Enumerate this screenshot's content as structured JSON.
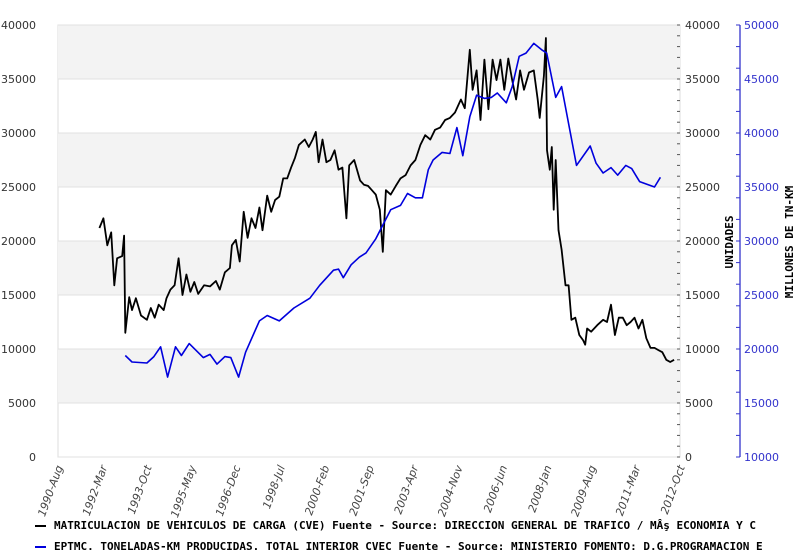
{
  "chart_data": {
    "type": "line",
    "title": "",
    "xlabel": "",
    "x_tick_labels": [
      "1990-Aug",
      "1992-Mar",
      "1993-Oct",
      "1995-May",
      "1996-Dec",
      "1998-Jul",
      "2000-Feb",
      "2001-Sep",
      "2003-Apr",
      "2004-Nov",
      "2006-Jun",
      "2008-Jan",
      "2009-Aug",
      "2011-Mar",
      "2012-Oct"
    ],
    "x_tick_values": [
      1990.583,
      1992.167,
      1993.75,
      1995.333,
      1996.917,
      1998.5,
      2000.083,
      2001.667,
      2003.25,
      2004.833,
      2006.417,
      2008.0,
      2009.583,
      2011.167,
      2012.75
    ],
    "xlim": [
      1990.583,
      2012.75
    ],
    "y_left": {
      "label": "UNIDADES",
      "ylim": [
        0,
        40000
      ],
      "ticks": [
        "0",
        "5000",
        "10000",
        "15000",
        "20000",
        "25000",
        "30000",
        "35000",
        "40000"
      ]
    },
    "y_right": {
      "label": "MILLONES DE TN-KM",
      "ylim": [
        10000,
        50000
      ],
      "ticks": [
        "10000",
        "15000",
        "20000",
        "25000",
        "30000",
        "35000",
        "40000",
        "45000",
        "50000"
      ],
      "color": "#3333cc"
    },
    "grid": true,
    "legend_placement": "bottom",
    "series": [
      {
        "name": "MATRICULACION DE VEHICULOS DE CARGA (CVE)  Fuente - Source: DIRECCION GENERAL DE TRAFICO / MÂş ECONOMIA Y C",
        "color": "#000000",
        "axis": "left",
        "x": [
          1992.06,
          1992.2,
          1992.34,
          1992.48,
          1992.59,
          1992.69,
          1992.87,
          1992.94,
          1992.98,
          1993.12,
          1993.22,
          1993.36,
          1993.54,
          1993.75,
          1993.89,
          1994.03,
          1994.17,
          1994.35,
          1994.45,
          1994.59,
          1994.74,
          1994.88,
          1995.02,
          1995.16,
          1995.3,
          1995.44,
          1995.58,
          1995.79,
          1996.0,
          1996.21,
          1996.35,
          1996.53,
          1996.71,
          1996.78,
          1996.92,
          1997.06,
          1997.2,
          1997.34,
          1997.48,
          1997.62,
          1997.76,
          1997.87,
          1998.04,
          1998.18,
          1998.32,
          1998.47,
          1998.61,
          1998.75,
          1998.89,
          1999.03,
          1999.17,
          1999.38,
          1999.52,
          1999.66,
          1999.77,
          1999.87,
          2000.01,
          2000.15,
          2000.29,
          2000.44,
          2000.58,
          2000.72,
          2000.86,
          2000.96,
          2001.14,
          2001.35,
          2001.49,
          2001.63,
          2001.77,
          2001.91,
          2002.05,
          2002.16,
          2002.27,
          2002.44,
          2002.62,
          2002.79,
          2002.97,
          2003.15,
          2003.32,
          2003.5,
          2003.67,
          2003.85,
          2004.02,
          2004.2,
          2004.38,
          2004.55,
          2004.73,
          2004.94,
          2005.08,
          2005.26,
          2005.36,
          2005.5,
          2005.64,
          2005.78,
          2005.92,
          2006.07,
          2006.21,
          2006.35,
          2006.49,
          2006.63,
          2006.77,
          2006.91,
          2007.05,
          2007.19,
          2007.37,
          2007.54,
          2007.68,
          2007.75,
          2007.9,
          2007.97,
          2008.01,
          2008.11,
          2008.18,
          2008.25,
          2008.32,
          2008.42,
          2008.53,
          2008.67,
          2008.78,
          2008.88,
          2009.02,
          2009.16,
          2009.3,
          2009.37,
          2009.44,
          2009.58,
          2009.8,
          2010.01,
          2010.15,
          2010.29,
          2010.43,
          2010.57,
          2010.71,
          2010.85,
          2010.99,
          2011.13,
          2011.27,
          2011.41,
          2011.55,
          2011.7,
          2011.84,
          2011.98,
          2012.12,
          2012.26,
          2012.4,
          2012.54
        ],
        "values": [
          21200,
          22100,
          19600,
          20800,
          15900,
          18400,
          18600,
          20500,
          11500,
          14800,
          13600,
          14700,
          13100,
          12700,
          13800,
          12900,
          14100,
          13600,
          14700,
          15500,
          15900,
          18400,
          15000,
          16900,
          15300,
          16200,
          15100,
          15900,
          15800,
          16300,
          15500,
          17100,
          17500,
          19600,
          20100,
          18100,
          22700,
          20300,
          22100,
          21200,
          23100,
          21000,
          24200,
          22700,
          23800,
          24100,
          25800,
          25800,
          26800,
          27700,
          28900,
          29400,
          28700,
          29400,
          30100,
          27300,
          29400,
          27300,
          27500,
          28400,
          26600,
          26800,
          22100,
          27000,
          27500,
          25600,
          25200,
          25100,
          24700,
          24300,
          22900,
          19000,
          24700,
          24300,
          25100,
          25800,
          26100,
          27000,
          27500,
          28900,
          29800,
          29400,
          30300,
          30500,
          31200,
          31400,
          31900,
          33100,
          32300,
          37700,
          34000,
          35800,
          31200,
          36800,
          32200,
          36800,
          34900,
          36800,
          34000,
          36900,
          34900,
          33100,
          35800,
          34000,
          35600,
          35800,
          33100,
          31400,
          35300,
          38800,
          28400,
          26600,
          28700,
          22900,
          27500,
          21000,
          19200,
          15900,
          15900,
          12700,
          12900,
          11300,
          10800,
          10400,
          11900,
          11600,
          12200,
          12700,
          12500,
          14100,
          11300,
          12900,
          12900,
          12200,
          12500,
          12900,
          11900,
          12700,
          11000,
          10100,
          10100,
          9900,
          9700,
          9000,
          8800,
          9000
        ]
      },
      {
        "name": "EPTMC. TONELADAS-KM PRODUCIDAS. TOTAL INTERIOR CVEC  Fuente - Source: MINISTERIO FOMENTO: D.G.PROGRAMACION E",
        "color": "#0000dd",
        "axis": "right",
        "x": [
          1992.98,
          1993.22,
          1993.75,
          1994.0,
          1994.24,
          1994.49,
          1994.77,
          1994.98,
          1995.26,
          1995.76,
          1996.0,
          1996.25,
          1996.53,
          1996.74,
          1997.02,
          1997.27,
          1997.76,
          1998.04,
          1998.47,
          1998.99,
          1999.56,
          1999.91,
          2000.4,
          2000.58,
          2000.75,
          2001.03,
          2001.32,
          2001.56,
          2001.91,
          2002.44,
          2002.79,
          2003.04,
          2003.32,
          2003.57,
          2003.78,
          2003.95,
          2004.27,
          2004.55,
          2004.8,
          2005.01,
          2005.26,
          2005.5,
          2005.78,
          2006.03,
          2006.24,
          2006.56,
          2006.77,
          2007.02,
          2007.26,
          2007.54,
          2007.82,
          2008.0,
          2008.32,
          2008.53,
          2009.06,
          2009.55,
          2009.76,
          2010.01,
          2010.29,
          2010.53,
          2010.82,
          2011.03,
          2011.31,
          2011.52,
          2011.84,
          2012.05
        ],
        "values": [
          19400,
          18800,
          18700,
          19300,
          20200,
          17400,
          20200,
          19400,
          20500,
          19200,
          19500,
          18600,
          19300,
          19200,
          17400,
          19700,
          22600,
          23100,
          22600,
          23800,
          24700,
          25900,
          27300,
          27400,
          26600,
          27800,
          28500,
          28900,
          30200,
          32900,
          33300,
          34400,
          34000,
          34000,
          36600,
          37500,
          38200,
          38100,
          40500,
          37900,
          41500,
          43500,
          43200,
          43300,
          43700,
          42800,
          44300,
          47100,
          47400,
          48300,
          47700,
          47400,
          43300,
          44300,
          37000,
          38800,
          37200,
          36300,
          36800,
          36100,
          37000,
          36700,
          35500,
          35300,
          35000,
          35900
        ]
      }
    ]
  }
}
